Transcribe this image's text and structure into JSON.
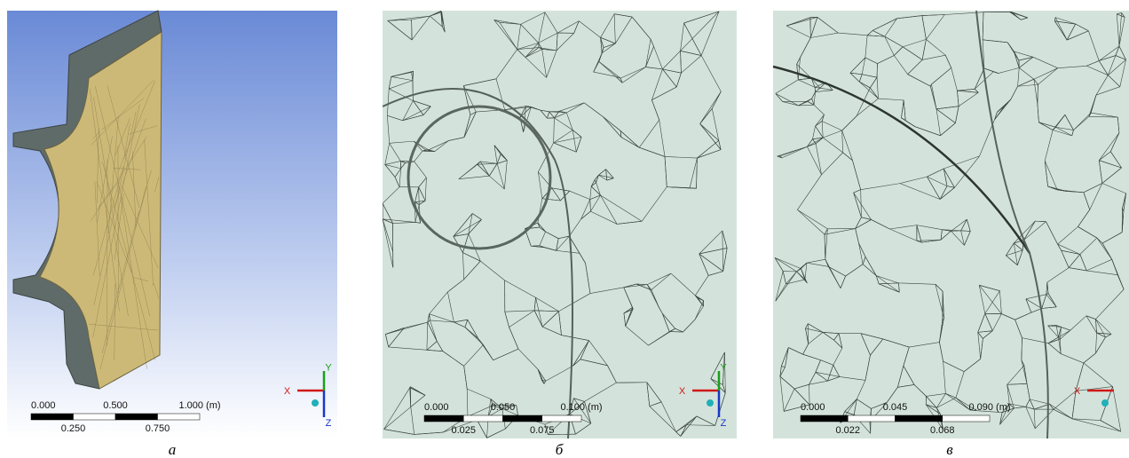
{
  "panels": [
    {
      "caption": "а",
      "scale": {
        "top": [
          "0.000",
          "0.500",
          "1.000 (m)"
        ],
        "bottom": [
          "0.250",
          "0.750"
        ]
      },
      "axes": [
        "X",
        "Y",
        "Z"
      ]
    },
    {
      "caption": "б",
      "scale": {
        "top": [
          "0.000",
          "0.050",
          "0.100 (m)"
        ],
        "bottom": [
          "0.025",
          "0.075"
        ]
      },
      "axes": [
        "X",
        "Y",
        "Z"
      ]
    },
    {
      "caption": "в",
      "scale": {
        "top": [
          "0.000",
          "0.045",
          "0.090 (m)"
        ],
        "bottom": [
          "0.022",
          "0.068"
        ]
      },
      "axes": [
        "X"
      ]
    }
  ]
}
